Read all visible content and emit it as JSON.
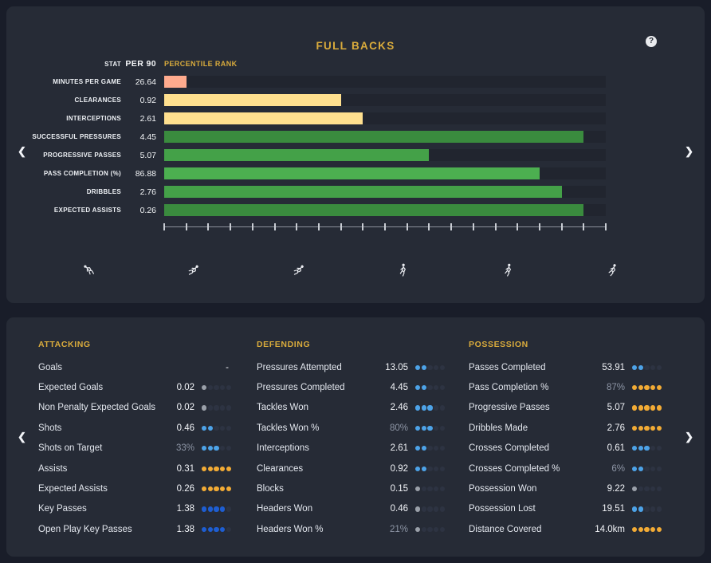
{
  "title": "FULL BACKS",
  "help": {
    "glyph": "?"
  },
  "nav": {
    "prev_glyph": "❮",
    "next_glyph": "❯"
  },
  "colors": {
    "page_bg": "#191d29",
    "panel_bg": "#262b36",
    "accent_gold": "#d9ab3c",
    "bar_track": "#21252f",
    "dot_empty": "#2d3342",
    "dot_gray": "#9aa0a9",
    "dot_light_blue": "#4da3e8",
    "dot_royal_blue": "#1e5ed2",
    "dot_yellow": "#f2ab35",
    "bar_salmon": "#ffab8e",
    "bar_yellow": "#ffe08f",
    "bar_green_dark": "#3a8b3e",
    "bar_green_mid": "#44a148",
    "bar_green_light": "#4caf50"
  },
  "chart": {
    "headers": {
      "stat": "STAT",
      "per90": "PER 90",
      "rank": "PERCENTILE RANK"
    },
    "rows": [
      {
        "label": "MINUTES PER GAME",
        "per90": "26.64",
        "percentile": 5,
        "color": "#ffab8e"
      },
      {
        "label": "CLEARANCES",
        "per90": "0.92",
        "percentile": 40,
        "color": "#ffe08f"
      },
      {
        "label": "INTERCEPTIONS",
        "per90": "2.61",
        "percentile": 45,
        "color": "#ffe08f"
      },
      {
        "label": "SUCCESSFUL PRESSURES",
        "per90": "4.45",
        "percentile": 95,
        "color": "#3a8b3e"
      },
      {
        "label": "PROGRESSIVE PASSES",
        "per90": "5.07",
        "percentile": 60,
        "color": "#44a148"
      },
      {
        "label": "PASS COMPLETION (%)",
        "per90": "86.88",
        "percentile": 85,
        "color": "#4caf50"
      },
      {
        "label": "DRIBBLES",
        "per90": "2.76",
        "percentile": 90,
        "color": "#44a148"
      },
      {
        "label": "EXPECTED ASSISTS",
        "per90": "0.26",
        "percentile": 95,
        "color": "#3a8b3e"
      }
    ],
    "axis": {
      "min": 0,
      "max": 100,
      "tick_count": 21
    }
  },
  "chart_data": {
    "type": "bar",
    "title": "FULL BACKS",
    "categories": [
      "MINUTES PER GAME",
      "CLEARANCES",
      "INTERCEPTIONS",
      "SUCCESSFUL PRESSURES",
      "PROGRESSIVE PASSES",
      "PASS COMPLETION (%)",
      "DRIBBLES",
      "EXPECTED ASSISTS"
    ],
    "series": [
      {
        "name": "PER 90",
        "values": [
          26.64,
          0.92,
          2.61,
          4.45,
          5.07,
          86.88,
          2.76,
          0.26
        ]
      },
      {
        "name": "PERCENTILE RANK",
        "values": [
          5,
          40,
          45,
          95,
          60,
          85,
          90,
          95
        ]
      }
    ],
    "xlabel": "PERCENTILE RANK",
    "ylabel": "STAT",
    "xlim": [
      0,
      100
    ],
    "grid": false,
    "orientation": "horizontal"
  },
  "pose_icons": [
    "diving-keeper-icon",
    "slide-tackle-icon",
    "slide-tackle-icon",
    "standing-player-icon",
    "walking-player-icon",
    "running-player-icon"
  ],
  "stats": {
    "columns": [
      {
        "header": "ATTACKING",
        "rows": [
          {
            "label": "Goals",
            "value": "-",
            "muted": false,
            "dots": null
          },
          {
            "label": "Expected Goals",
            "value": "0.02",
            "muted": false,
            "dots": {
              "filled": 1,
              "total": 5,
              "color": "#9aa0a9"
            }
          },
          {
            "label": "Non Penalty Expected Goals",
            "value": "0.02",
            "muted": false,
            "dots": {
              "filled": 1,
              "total": 5,
              "color": "#9aa0a9"
            }
          },
          {
            "label": "Shots",
            "value": "0.46",
            "muted": false,
            "dots": {
              "filled": 2,
              "total": 5,
              "color": "#4da3e8"
            }
          },
          {
            "label": "Shots on Target",
            "value": "33%",
            "muted": true,
            "dots": {
              "filled": 3,
              "total": 5,
              "color": "#4da3e8"
            }
          },
          {
            "label": "Assists",
            "value": "0.31",
            "muted": false,
            "dots": {
              "filled": 5,
              "total": 5,
              "color": "#f2ab35"
            }
          },
          {
            "label": "Expected Assists",
            "value": "0.26",
            "muted": false,
            "dots": {
              "filled": 5,
              "total": 5,
              "color": "#f2ab35"
            }
          },
          {
            "label": "Key Passes",
            "value": "1.38",
            "muted": false,
            "dots": {
              "filled": 4,
              "total": 5,
              "color": "#1e5ed2"
            }
          },
          {
            "label": "Open Play Key Passes",
            "value": "1.38",
            "muted": false,
            "dots": {
              "filled": 4,
              "total": 5,
              "color": "#1e5ed2"
            }
          }
        ]
      },
      {
        "header": "DEFENDING",
        "rows": [
          {
            "label": "Pressures Attempted",
            "value": "13.05",
            "muted": false,
            "dots": {
              "filled": 2,
              "total": 5,
              "color": "#4da3e8"
            }
          },
          {
            "label": "Pressures Completed",
            "value": "4.45",
            "muted": false,
            "dots": {
              "filled": 2,
              "total": 5,
              "color": "#4da3e8"
            }
          },
          {
            "label": "Tackles Won",
            "value": "2.46",
            "muted": false,
            "dots": {
              "filled": 3,
              "total": 5,
              "color": "#4da3e8"
            }
          },
          {
            "label": "Tackles Won %",
            "value": "80%",
            "muted": true,
            "dots": {
              "filled": 3,
              "total": 5,
              "color": "#4da3e8"
            }
          },
          {
            "label": "Interceptions",
            "value": "2.61",
            "muted": false,
            "dots": {
              "filled": 2,
              "total": 5,
              "color": "#4da3e8"
            }
          },
          {
            "label": "Clearances",
            "value": "0.92",
            "muted": false,
            "dots": {
              "filled": 2,
              "total": 5,
              "color": "#4da3e8"
            }
          },
          {
            "label": "Blocks",
            "value": "0.15",
            "muted": false,
            "dots": {
              "filled": 1,
              "total": 5,
              "color": "#9aa0a9"
            }
          },
          {
            "label": "Headers Won",
            "value": "0.46",
            "muted": false,
            "dots": {
              "filled": 1,
              "total": 5,
              "color": "#9aa0a9"
            }
          },
          {
            "label": "Headers Won %",
            "value": "21%",
            "muted": true,
            "dots": {
              "filled": 1,
              "total": 5,
              "color": "#9aa0a9"
            }
          }
        ]
      },
      {
        "header": "POSSESSION",
        "rows": [
          {
            "label": "Passes Completed",
            "value": "53.91",
            "muted": false,
            "dots": {
              "filled": 2,
              "total": 5,
              "color": "#4da3e8"
            }
          },
          {
            "label": "Pass Completion %",
            "value": "87%",
            "muted": true,
            "dots": {
              "filled": 5,
              "total": 5,
              "color": "#f2ab35"
            }
          },
          {
            "label": "Progressive Passes",
            "value": "5.07",
            "muted": false,
            "dots": {
              "filled": 5,
              "total": 5,
              "color": "#f2ab35"
            }
          },
          {
            "label": "Dribbles Made",
            "value": "2.76",
            "muted": false,
            "dots": {
              "filled": 5,
              "total": 5,
              "color": "#f2ab35"
            }
          },
          {
            "label": "Crosses Completed",
            "value": "0.61",
            "muted": false,
            "dots": {
              "filled": 3,
              "total": 5,
              "color": "#4da3e8"
            }
          },
          {
            "label": "Crosses Completed %",
            "value": "6%",
            "muted": true,
            "dots": {
              "filled": 2,
              "total": 5,
              "color": "#4da3e8"
            }
          },
          {
            "label": "Possession Won",
            "value": "9.22",
            "muted": false,
            "dots": {
              "filled": 1,
              "total": 5,
              "color": "#9aa0a9"
            }
          },
          {
            "label": "Possession Lost",
            "value": "19.51",
            "muted": false,
            "dots": {
              "filled": 2,
              "total": 5,
              "color": "#4da3e8"
            }
          },
          {
            "label": "Distance Covered",
            "value": "14.0km",
            "muted": false,
            "dots": {
              "filled": 5,
              "total": 5,
              "color": "#f2ab35"
            }
          }
        ]
      }
    ]
  }
}
